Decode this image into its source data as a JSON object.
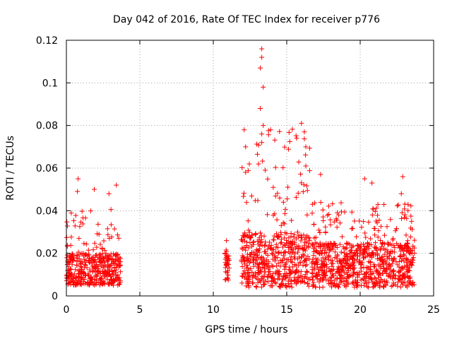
{
  "chart_data": {
    "type": "scatter",
    "title": "Day 042 of 2016, Rate Of TEC Index for receiver p776",
    "xlabel": "GPS time / hours",
    "ylabel": "ROTI / TECUs",
    "xlim": [
      0,
      25
    ],
    "ylim": [
      0,
      0.12
    ],
    "x_ticks": [
      0,
      5,
      10,
      15,
      20,
      25
    ],
    "x_tick_labels": [
      "0",
      "5",
      "10",
      "15",
      "20",
      "25"
    ],
    "y_ticks": [
      0,
      0.02,
      0.04,
      0.06,
      0.08,
      0.1,
      0.12
    ],
    "y_tick_labels": [
      "0",
      "0.02",
      "0.04",
      "0.06",
      "0.08",
      "0.1",
      "0.12"
    ],
    "grid": true,
    "marker": "+",
    "color": "#ff0000",
    "segments": [
      {
        "x_start": 0.0,
        "x_end": 3.7,
        "typical_min": 0.005,
        "typical_max": 0.02,
        "peak": 0.055
      },
      {
        "x_start": 10.8,
        "x_end": 11.1,
        "typical_min": 0.005,
        "typical_max": 0.02,
        "peak": 0.026
      },
      {
        "x_start": 11.9,
        "x_end": 16.6,
        "typical_min": 0.004,
        "typical_max": 0.03,
        "peak": 0.116
      },
      {
        "x_start": 16.7,
        "x_end": 23.7,
        "typical_min": 0.004,
        "typical_max": 0.025,
        "peak": 0.057
      }
    ],
    "notable_points": [
      {
        "x": 0.8,
        "y": 0.055
      },
      {
        "x": 0.75,
        "y": 0.049
      },
      {
        "x": 1.9,
        "y": 0.05
      },
      {
        "x": 2.9,
        "y": 0.048
      },
      {
        "x": 3.4,
        "y": 0.052
      },
      {
        "x": 10.9,
        "y": 0.026
      },
      {
        "x": 12.1,
        "y": 0.078
      },
      {
        "x": 12.2,
        "y": 0.07
      },
      {
        "x": 12.2,
        "y": 0.058
      },
      {
        "x": 13.3,
        "y": 0.116
      },
      {
        "x": 13.3,
        "y": 0.112
      },
      {
        "x": 13.2,
        "y": 0.107
      },
      {
        "x": 13.4,
        "y": 0.098
      },
      {
        "x": 13.2,
        "y": 0.088
      },
      {
        "x": 13.4,
        "y": 0.08
      },
      {
        "x": 13.3,
        "y": 0.076
      },
      {
        "x": 13.9,
        "y": 0.078
      },
      {
        "x": 13.3,
        "y": 0.072
      },
      {
        "x": 16.0,
        "y": 0.081
      },
      {
        "x": 16.2,
        "y": 0.077
      },
      {
        "x": 16.3,
        "y": 0.07
      },
      {
        "x": 16.3,
        "y": 0.061
      },
      {
        "x": 17.3,
        "y": 0.057
      },
      {
        "x": 20.3,
        "y": 0.055
      },
      {
        "x": 20.8,
        "y": 0.053
      },
      {
        "x": 22.9,
        "y": 0.056
      },
      {
        "x": 22.8,
        "y": 0.048
      },
      {
        "x": 23.5,
        "y": 0.035
      }
    ]
  }
}
